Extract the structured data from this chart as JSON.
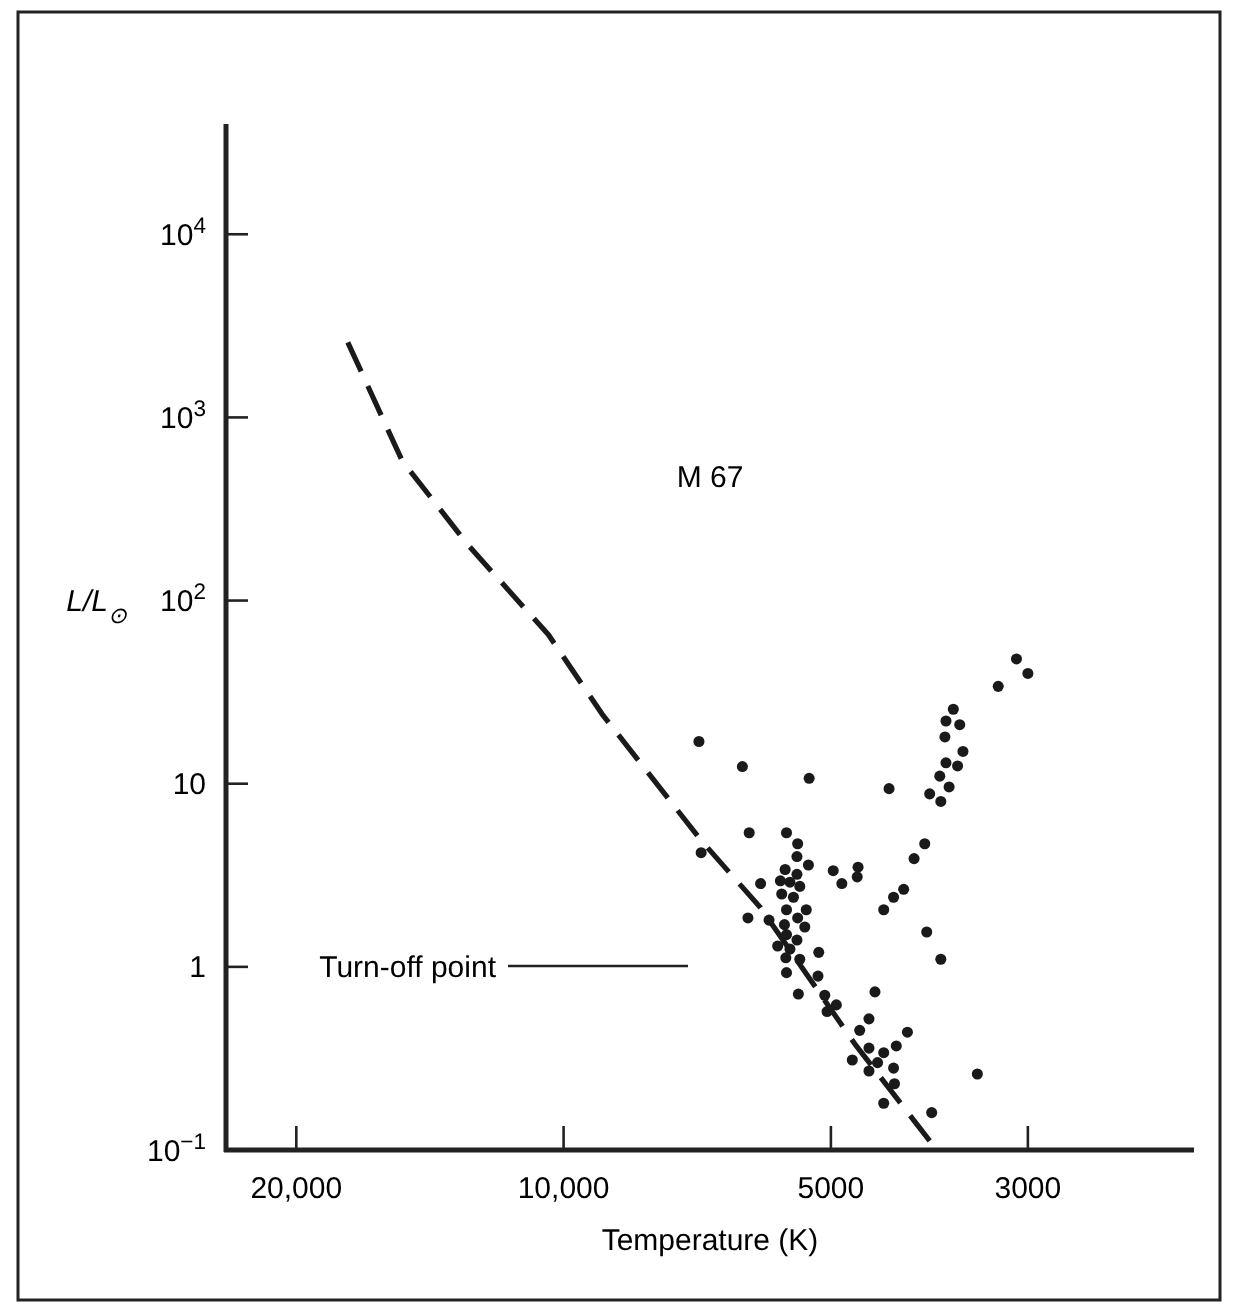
{
  "chart_data": {
    "type": "scatter",
    "xlabel": "Temperature (K)",
    "ylabel": "L/L$_{⊙}$",
    "log": "xy",
    "grid": false,
    "xlim": [
      24000,
      1950
    ],
    "xticks": [
      {
        "value": 20000,
        "label": "20,000"
      },
      {
        "value": 10000,
        "label": "10,000"
      },
      5000,
      3000
    ],
    "ylim": [
      0.1,
      40000
    ],
    "yticks": [
      {
        "value": 0.1,
        "label": "10$^{−1}$"
      },
      1,
      10,
      {
        "value": 100,
        "label": "10$^{2}$"
      },
      {
        "value": 1000,
        "label": "10$^{3}$"
      },
      {
        "value": 10000,
        "label": "10$^{4}$"
      }
    ],
    "annotations": [
      "M 67",
      "Turn-off point"
    ],
    "series": [
      {
        "color": "#1a1a1a",
        "marker": "circle",
        "x": [
          3090,
          3000,
          3240,
          3640,
          3710,
          3580,
          3720,
          3550,
          3710,
          3600,
          3770,
          3680,
          3870,
          3760,
          4300,
          5290,
          6290,
          7040,
          6180,
          5610,
          5450,
          5460,
          5300,
          5630,
          5460,
          5700,
          5560,
          5420,
          6000,
          5680,
          5510,
          5610,
          5330,
          5450,
          5640,
          5350,
          5610,
          5460,
          5740,
          5560,
          5160,
          5620,
          5420,
          5610,
          5170,
          5440,
          5080,
          4930,
          5050,
          4460,
          4530,
          4640,
          4100,
          4530,
          4220,
          4360,
          4730,
          4430,
          4530,
          4250,
          4240,
          4360,
          3850,
          3420,
          3920,
          4030,
          4140,
          4250,
          4360,
          3900,
          3760,
          4970,
          4860,
          4660,
          4670,
          7000,
          6200,
          5870
        ],
        "values": [
          48,
          40,
          34,
          25.5,
          22,
          21,
          18,
          15,
          13,
          12.5,
          11,
          9.6,
          8.8,
          8,
          9.4,
          10.7,
          12.4,
          17,
          5.4,
          5.4,
          4.7,
          4,
          3.6,
          3.4,
          3.2,
          2.95,
          2.9,
          2.75,
          2.85,
          2.5,
          2.4,
          2.05,
          2.05,
          1.85,
          1.7,
          1.65,
          1.5,
          1.4,
          1.3,
          1.25,
          1.2,
          1.12,
          1.1,
          0.93,
          0.89,
          0.71,
          0.7,
          0.62,
          0.57,
          0.73,
          0.52,
          0.45,
          0.44,
          0.36,
          0.37,
          0.34,
          0.31,
          0.3,
          0.27,
          0.28,
          0.23,
          0.18,
          0.16,
          0.26,
          4.7,
          3.9,
          2.65,
          2.4,
          2.05,
          1.55,
          1.1,
          3.35,
          2.85,
          3.5,
          3.1,
          4.2,
          1.85,
          1.8
        ]
      },
      {
        "type": "line",
        "color": "#1a1a1a",
        "line_style": "dashed",
        "marker": "none",
        "x": [
          17500,
          15200,
          12800,
          10400,
          9050,
          7000,
          6000,
          4700,
          3800
        ],
        "values": [
          2570,
          580,
          200,
          65,
          24,
          4.9,
          2.1,
          0.38,
          0.1
        ]
      }
    ]
  }
}
